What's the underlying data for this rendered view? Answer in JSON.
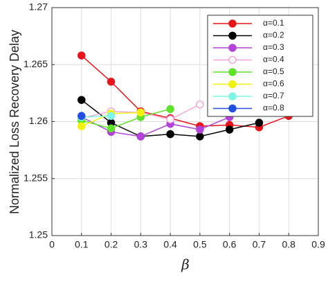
{
  "chart_data": {
    "type": "line",
    "x_label": "β",
    "y_label": "Normalized Loss Recovery Delay",
    "xlim": [
      0,
      0.9
    ],
    "xticks": [
      0,
      0.1,
      0.2,
      0.3,
      0.4,
      0.5,
      0.6,
      0.7,
      0.8,
      0.9
    ],
    "ylim": [
      1.25,
      1.27
    ],
    "yticks": [
      1.25,
      1.255,
      1.26,
      1.265,
      1.27
    ],
    "grid": true,
    "legend": "upper right",
    "series": [
      {
        "name": "α=0.1",
        "color": "#e8141c",
        "x": [
          0.1,
          0.2,
          0.3,
          0.4,
          0.5,
          0.6,
          0.7,
          0.8
        ],
        "values": [
          1.2658,
          1.2635,
          1.2609,
          1.2603,
          1.2596,
          1.2597,
          1.2595,
          1.2605
        ]
      },
      {
        "name": "α=0.2",
        "color": "#000000",
        "x": [
          0.1,
          0.2,
          0.3,
          0.4,
          0.5,
          0.6,
          0.7
        ],
        "values": [
          1.2619,
          1.2599,
          1.2587,
          1.2589,
          1.2587,
          1.2593,
          1.2599
        ]
      },
      {
        "name": "α=0.3",
        "color": "#b342d9",
        "x": [
          0.1,
          0.2,
          0.3,
          0.4,
          0.5,
          0.6
        ],
        "values": [
          1.2604,
          1.2591,
          1.2587,
          1.2598,
          1.2593,
          1.2604
        ]
      },
      {
        "name": "α=0.4",
        "color": "#f5a8d8",
        "hollow": true,
        "x": [
          0.1,
          0.2,
          0.3,
          0.4,
          0.5
        ],
        "values": [
          1.2603,
          1.2609,
          1.2608,
          1.2602,
          1.2615
        ]
      },
      {
        "name": "α=0.5",
        "color": "#5fe22a",
        "x": [
          0.1,
          0.2,
          0.3,
          0.4
        ],
        "values": [
          1.2601,
          1.2594,
          1.2604,
          1.2611
        ]
      },
      {
        "name": "α=0.6",
        "color": "#f2f20f",
        "x": [
          0.1,
          0.2,
          0.3
        ],
        "values": [
          1.2596,
          1.2607,
          1.2608
        ]
      },
      {
        "name": "α=0.7",
        "color": "#7ff5e6",
        "x": [
          0.1,
          0.2
        ],
        "values": [
          1.2604,
          1.2605
        ]
      },
      {
        "name": "α=0.8",
        "color": "#2150e0",
        "x": [
          0.1
        ],
        "values": [
          1.2605
        ]
      }
    ]
  }
}
